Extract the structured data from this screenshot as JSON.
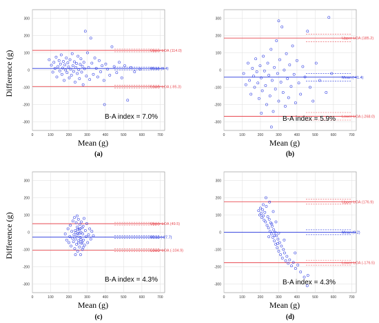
{
  "axis_text": {
    "xlabel": "Mean (g)",
    "ylabel": "Difference (g)"
  },
  "colors": {
    "points": "#1f2fe0",
    "mean_line": "#2233dd",
    "loa_line": "#e8484f",
    "grid": "#dcdcdc",
    "axis": "#888888"
  },
  "chart_data": [
    {
      "type": "scatter",
      "panel": "(a)",
      "xlabel": "Mean (g)",
      "ylabel": "Difference (g)",
      "xlim": [
        0,
        725
      ],
      "ylim": [
        -350,
        350
      ],
      "xticks": [
        0,
        100,
        200,
        300,
        400,
        500,
        600,
        700
      ],
      "yticks": [
        -300,
        -200,
        -100,
        0,
        100,
        200,
        300
      ],
      "grid": true,
      "upper_loa": {
        "value": 114.0,
        "label": "Upper LOA (114.0)"
      },
      "mean": {
        "value": 9.4,
        "label": "Mean (9.4)"
      },
      "lower_loa": {
        "value": -95.3,
        "label": "Lower LOA (-95.3)"
      },
      "ci_band": 8,
      "index_label": "B-A index = 7.0%",
      "points": [
        [
          92,
          60
        ],
        [
          104,
          28
        ],
        [
          112,
          -12
        ],
        [
          118,
          45
        ],
        [
          124,
          10
        ],
        [
          130,
          75
        ],
        [
          134,
          -40
        ],
        [
          140,
          20
        ],
        [
          146,
          55
        ],
        [
          150,
          -5
        ],
        [
          154,
          35
        ],
        [
          158,
          88
        ],
        [
          162,
          -25
        ],
        [
          166,
          12
        ],
        [
          170,
          50
        ],
        [
          174,
          -60
        ],
        [
          178,
          30
        ],
        [
          182,
          0
        ],
        [
          186,
          70
        ],
        [
          190,
          -15
        ],
        [
          194,
          42
        ],
        [
          198,
          18
        ],
        [
          202,
          -45
        ],
        [
          206,
          60
        ],
        [
          210,
          5
        ],
        [
          214,
          -30
        ],
        [
          218,
          95
        ],
        [
          222,
          25
        ],
        [
          226,
          -8
        ],
        [
          230,
          48
        ],
        [
          234,
          -70
        ],
        [
          238,
          15
        ],
        [
          242,
          38
        ],
        [
          246,
          -20
        ],
        [
          250,
          80
        ],
        [
          254,
          2
        ],
        [
          258,
          -50
        ],
        [
          262,
          33
        ],
        [
          266,
          65
        ],
        [
          270,
          -12
        ],
        [
          274,
          22
        ],
        [
          278,
          -85
        ],
        [
          282,
          45
        ],
        [
          286,
          8
        ],
        [
          290,
          225
        ],
        [
          296,
          -35
        ],
        [
          302,
          100
        ],
        [
          308,
          15
        ],
        [
          314,
          -55
        ],
        [
          320,
          185
        ],
        [
          326,
          40
        ],
        [
          334,
          -25
        ],
        [
          342,
          70
        ],
        [
          350,
          10
        ],
        [
          358,
          -40
        ],
        [
          366,
          55
        ],
        [
          374,
          -10
        ],
        [
          382,
          25
        ],
        [
          392,
          -60
        ],
        [
          402,
          35
        ],
        [
          412,
          5
        ],
        [
          424,
          -30
        ],
        [
          436,
          135
        ],
        [
          448,
          20
        ],
        [
          462,
          -15
        ],
        [
          476,
          45
        ],
        [
          490,
          -45
        ],
        [
          506,
          25
        ],
        [
          522,
          -175
        ],
        [
          540,
          15
        ],
        [
          560,
          -10
        ],
        [
          590,
          5
        ],
        [
          395,
          -200
        ]
      ]
    },
    {
      "type": "scatter",
      "panel": "(b)",
      "xlabel": "Mean (g)",
      "ylabel": "",
      "xlim": [
        0,
        725
      ],
      "ylim": [
        -350,
        350
      ],
      "xticks": [
        0,
        100,
        200,
        300,
        400,
        500,
        600,
        700
      ],
      "yticks": [
        -300,
        -200,
        -100,
        0,
        100,
        200,
        300
      ],
      "grid": true,
      "upper_loa": {
        "value": 185.2,
        "label": "Upper LOA (185.2)"
      },
      "mean": {
        "value": -41.4,
        "label": "Mean (-41.4)"
      },
      "lower_loa": {
        "value": -268.0,
        "label": "Lower LOA (-268.0)"
      },
      "ci_band": 22,
      "index_label": "B-A index = 5.9%",
      "points": [
        [
          108,
          -20
        ],
        [
          120,
          -85
        ],
        [
          132,
          40
        ],
        [
          140,
          -60
        ],
        [
          148,
          -140
        ],
        [
          156,
          10
        ],
        [
          162,
          -35
        ],
        [
          168,
          -100
        ],
        [
          174,
          65
        ],
        [
          180,
          -10
        ],
        [
          186,
          -75
        ],
        [
          192,
          -165
        ],
        [
          198,
          25
        ],
        [
          204,
          -45
        ],
        [
          210,
          -120
        ],
        [
          216,
          80
        ],
        [
          222,
          -5
        ],
        [
          228,
          -90
        ],
        [
          234,
          -200
        ],
        [
          240,
          40
        ],
        [
          246,
          -30
        ],
        [
          252,
          -150
        ],
        [
          258,
          120
        ],
        [
          264,
          -60
        ],
        [
          270,
          -240
        ],
        [
          276,
          15
        ],
        [
          282,
          -110
        ],
        [
          288,
          170
        ],
        [
          294,
          -20
        ],
        [
          300,
          -180
        ],
        [
          306,
          60
        ],
        [
          312,
          -70
        ],
        [
          318,
          250
        ],
        [
          324,
          -130
        ],
        [
          330,
          0
        ],
        [
          336,
          -210
        ],
        [
          342,
          95
        ],
        [
          348,
          -50
        ],
        [
          354,
          -160
        ],
        [
          360,
          30
        ],
        [
          368,
          -95
        ],
        [
          376,
          140
        ],
        [
          384,
          -25
        ],
        [
          392,
          -190
        ],
        [
          400,
          55
        ],
        [
          410,
          -75
        ],
        [
          420,
          -140
        ],
        [
          432,
          20
        ],
        [
          444,
          -40
        ],
        [
          458,
          225
        ],
        [
          472,
          -100
        ],
        [
          488,
          -180
        ],
        [
          505,
          40
        ],
        [
          525,
          -60
        ],
        [
          560,
          -130
        ],
        [
          590,
          -20
        ],
        [
          575,
          305
        ],
        [
          300,
          285
        ],
        [
          205,
          -250
        ],
        [
          260,
          -330
        ]
      ]
    },
    {
      "type": "scatter",
      "panel": "(c)",
      "xlabel": "Mean (g)",
      "ylabel": "Difference (g)",
      "xlim": [
        0,
        725
      ],
      "ylim": [
        -350,
        350
      ],
      "xticks": [
        0,
        100,
        200,
        300,
        400,
        500,
        600,
        700
      ],
      "yticks": [
        -300,
        -200,
        -100,
        0,
        100,
        200,
        300
      ],
      "grid": true,
      "upper_loa": {
        "value": 49.5,
        "label": "Upper LOA (49.5)"
      },
      "mean": {
        "value": -27.7,
        "label": "Mean (-27.7)"
      },
      "lower_loa": {
        "value": -104.9,
        "label": "Lower LOA (-104.9)"
      },
      "ci_band": 8,
      "index_label": "B-A index = 4.3%",
      "points": [
        [
          180,
          -10
        ],
        [
          188,
          -45
        ],
        [
          195,
          20
        ],
        [
          200,
          -60
        ],
        [
          205,
          -25
        ],
        [
          208,
          40
        ],
        [
          212,
          -80
        ],
        [
          216,
          5
        ],
        [
          220,
          -35
        ],
        [
          222,
          65
        ],
        [
          225,
          -55
        ],
        [
          228,
          -15
        ],
        [
          230,
          85
        ],
        [
          232,
          -95
        ],
        [
          235,
          10
        ],
        [
          237,
          -40
        ],
        [
          240,
          55
        ],
        [
          242,
          -70
        ],
        [
          244,
          -20
        ],
        [
          246,
          30
        ],
        [
          248,
          -110
        ],
        [
          250,
          -5
        ],
        [
          252,
          75
        ],
        [
          254,
          -50
        ],
        [
          256,
          15
        ],
        [
          258,
          -85
        ],
        [
          260,
          45
        ],
        [
          262,
          -30
        ],
        [
          264,
          -130
        ],
        [
          266,
          0
        ],
        [
          268,
          60
        ],
        [
          270,
          -65
        ],
        [
          272,
          25
        ],
        [
          274,
          -100
        ],
        [
          276,
          -10
        ],
        [
          278,
          35
        ],
        [
          280,
          -45
        ],
        [
          283,
          80
        ],
        [
          286,
          -75
        ],
        [
          290,
          10
        ],
        [
          294,
          -25
        ],
        [
          298,
          50
        ],
        [
          303,
          -60
        ],
        [
          308,
          -15
        ],
        [
          314,
          20
        ],
        [
          320,
          -40
        ],
        [
          326,
          5
        ],
        [
          334,
          -20
        ],
        [
          236,
          -130
        ],
        [
          245,
          95
        ],
        [
          258,
          -8
        ],
        [
          262,
          22
        ],
        [
          266,
          -42
        ],
        [
          271,
          -58
        ],
        [
          248,
          18
        ],
        [
          239,
          -2
        ],
        [
          253,
          -62
        ],
        [
          278,
          -88
        ]
      ]
    },
    {
      "type": "scatter",
      "panel": "(d)",
      "xlabel": "Mean (g)",
      "ylabel": "",
      "xlim": [
        0,
        725
      ],
      "ylim": [
        -350,
        350
      ],
      "xticks": [
        0,
        100,
        200,
        300,
        400,
        500,
        600,
        700
      ],
      "yticks": [
        -300,
        -200,
        -100,
        0,
        100,
        200,
        300
      ],
      "grid": true,
      "upper_loa": {
        "value": 176.9,
        "label": "Upper LOA (176.9)"
      },
      "mean": {
        "value": 0.2,
        "label": "Mean (0.2)"
      },
      "lower_loa": {
        "value": -176.5,
        "label": "Lower LOA (-176.5)"
      },
      "ci_band": 14,
      "index_label": "B-A index = 4.3%",
      "points": [
        [
          190,
          125
        ],
        [
          196,
          100
        ],
        [
          200,
          140
        ],
        [
          204,
          110
        ],
        [
          208,
          85
        ],
        [
          212,
          130
        ],
        [
          216,
          95
        ],
        [
          220,
          70
        ],
        [
          224,
          115
        ],
        [
          228,
          60
        ],
        [
          232,
          150
        ],
        [
          236,
          40
        ],
        [
          240,
          90
        ],
        [
          244,
          25
        ],
        [
          248,
          75
        ],
        [
          252,
          5
        ],
        [
          256,
          55
        ],
        [
          260,
          -10
        ],
        [
          264,
          35
        ],
        [
          268,
          -30
        ],
        [
          272,
          15
        ],
        [
          276,
          -50
        ],
        [
          280,
          0
        ],
        [
          284,
          -70
        ],
        [
          288,
          -20
        ],
        [
          292,
          -90
        ],
        [
          296,
          -40
        ],
        [
          300,
          -110
        ],
        [
          305,
          -60
        ],
        [
          310,
          -130
        ],
        [
          315,
          -80
        ],
        [
          320,
          -150
        ],
        [
          326,
          -100
        ],
        [
          332,
          -120
        ],
        [
          338,
          -165
        ],
        [
          345,
          -140
        ],
        [
          352,
          -180
        ],
        [
          360,
          -160
        ],
        [
          370,
          -195
        ],
        [
          380,
          -175
        ],
        [
          392,
          -210
        ],
        [
          405,
          -190
        ],
        [
          420,
          -230
        ],
        [
          440,
          -260
        ],
        [
          456,
          -310
        ],
        [
          230,
          200
        ],
        [
          250,
          175
        ],
        [
          215,
          160
        ],
        [
          270,
          120
        ],
        [
          285,
          60
        ],
        [
          300,
          -5
        ],
        [
          330,
          -45
        ],
        [
          390,
          -120
        ],
        [
          460,
          -250
        ],
        [
          246,
          -26
        ],
        [
          262,
          48
        ],
        [
          278,
          -18
        ],
        [
          294,
          -66
        ]
      ]
    }
  ]
}
